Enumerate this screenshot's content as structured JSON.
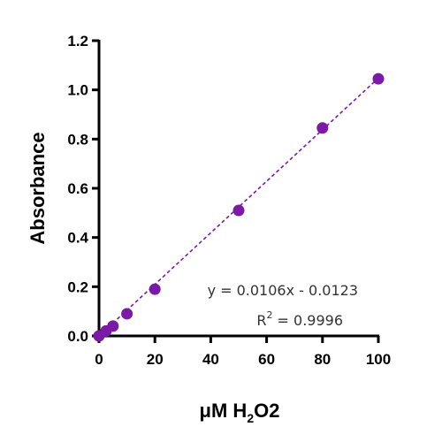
{
  "chart_data": {
    "type": "scatter",
    "title": "",
    "xlabel": {
      "prefix": "μM H",
      "subscript": "2",
      "suffix": "O2"
    },
    "ylabel": "Absorbance",
    "xlim": [
      0,
      100
    ],
    "ylim": [
      0,
      1.2
    ],
    "xticks": [
      0,
      20,
      40,
      60,
      80,
      100
    ],
    "yticks": [
      0.0,
      0.2,
      0.4,
      0.6,
      0.8,
      1.0,
      1.2
    ],
    "xtick_labels": [
      "0",
      "20",
      "40",
      "60",
      "80",
      "100"
    ],
    "ytick_labels": [
      "0.0",
      "0.2",
      "0.4",
      "0.6",
      "0.8",
      "1.0",
      "1.2"
    ],
    "grid": false,
    "series": [
      {
        "color": "#7a1aa6",
        "points": [
          {
            "x": 0,
            "y": 0.0
          },
          {
            "x": 2.5,
            "y": 0.02
          },
          {
            "x": 5,
            "y": 0.04
          },
          {
            "x": 10,
            "y": 0.09
          },
          {
            "x": 20,
            "y": 0.19
          },
          {
            "x": 50,
            "y": 0.51
          },
          {
            "x": 80,
            "y": 0.845
          },
          {
            "x": 100,
            "y": 1.045
          }
        ]
      }
    ],
    "fit_line": {
      "slope": 0.0106,
      "intercept": -0.0123,
      "style": "dashed",
      "color": "#7a1aa6"
    },
    "annotations": {
      "equation": "y = 0.0106x - 0.0123",
      "r2_prefix": "R",
      "r2_superscript": "2",
      "r2_suffix": " = 0.9996"
    }
  }
}
